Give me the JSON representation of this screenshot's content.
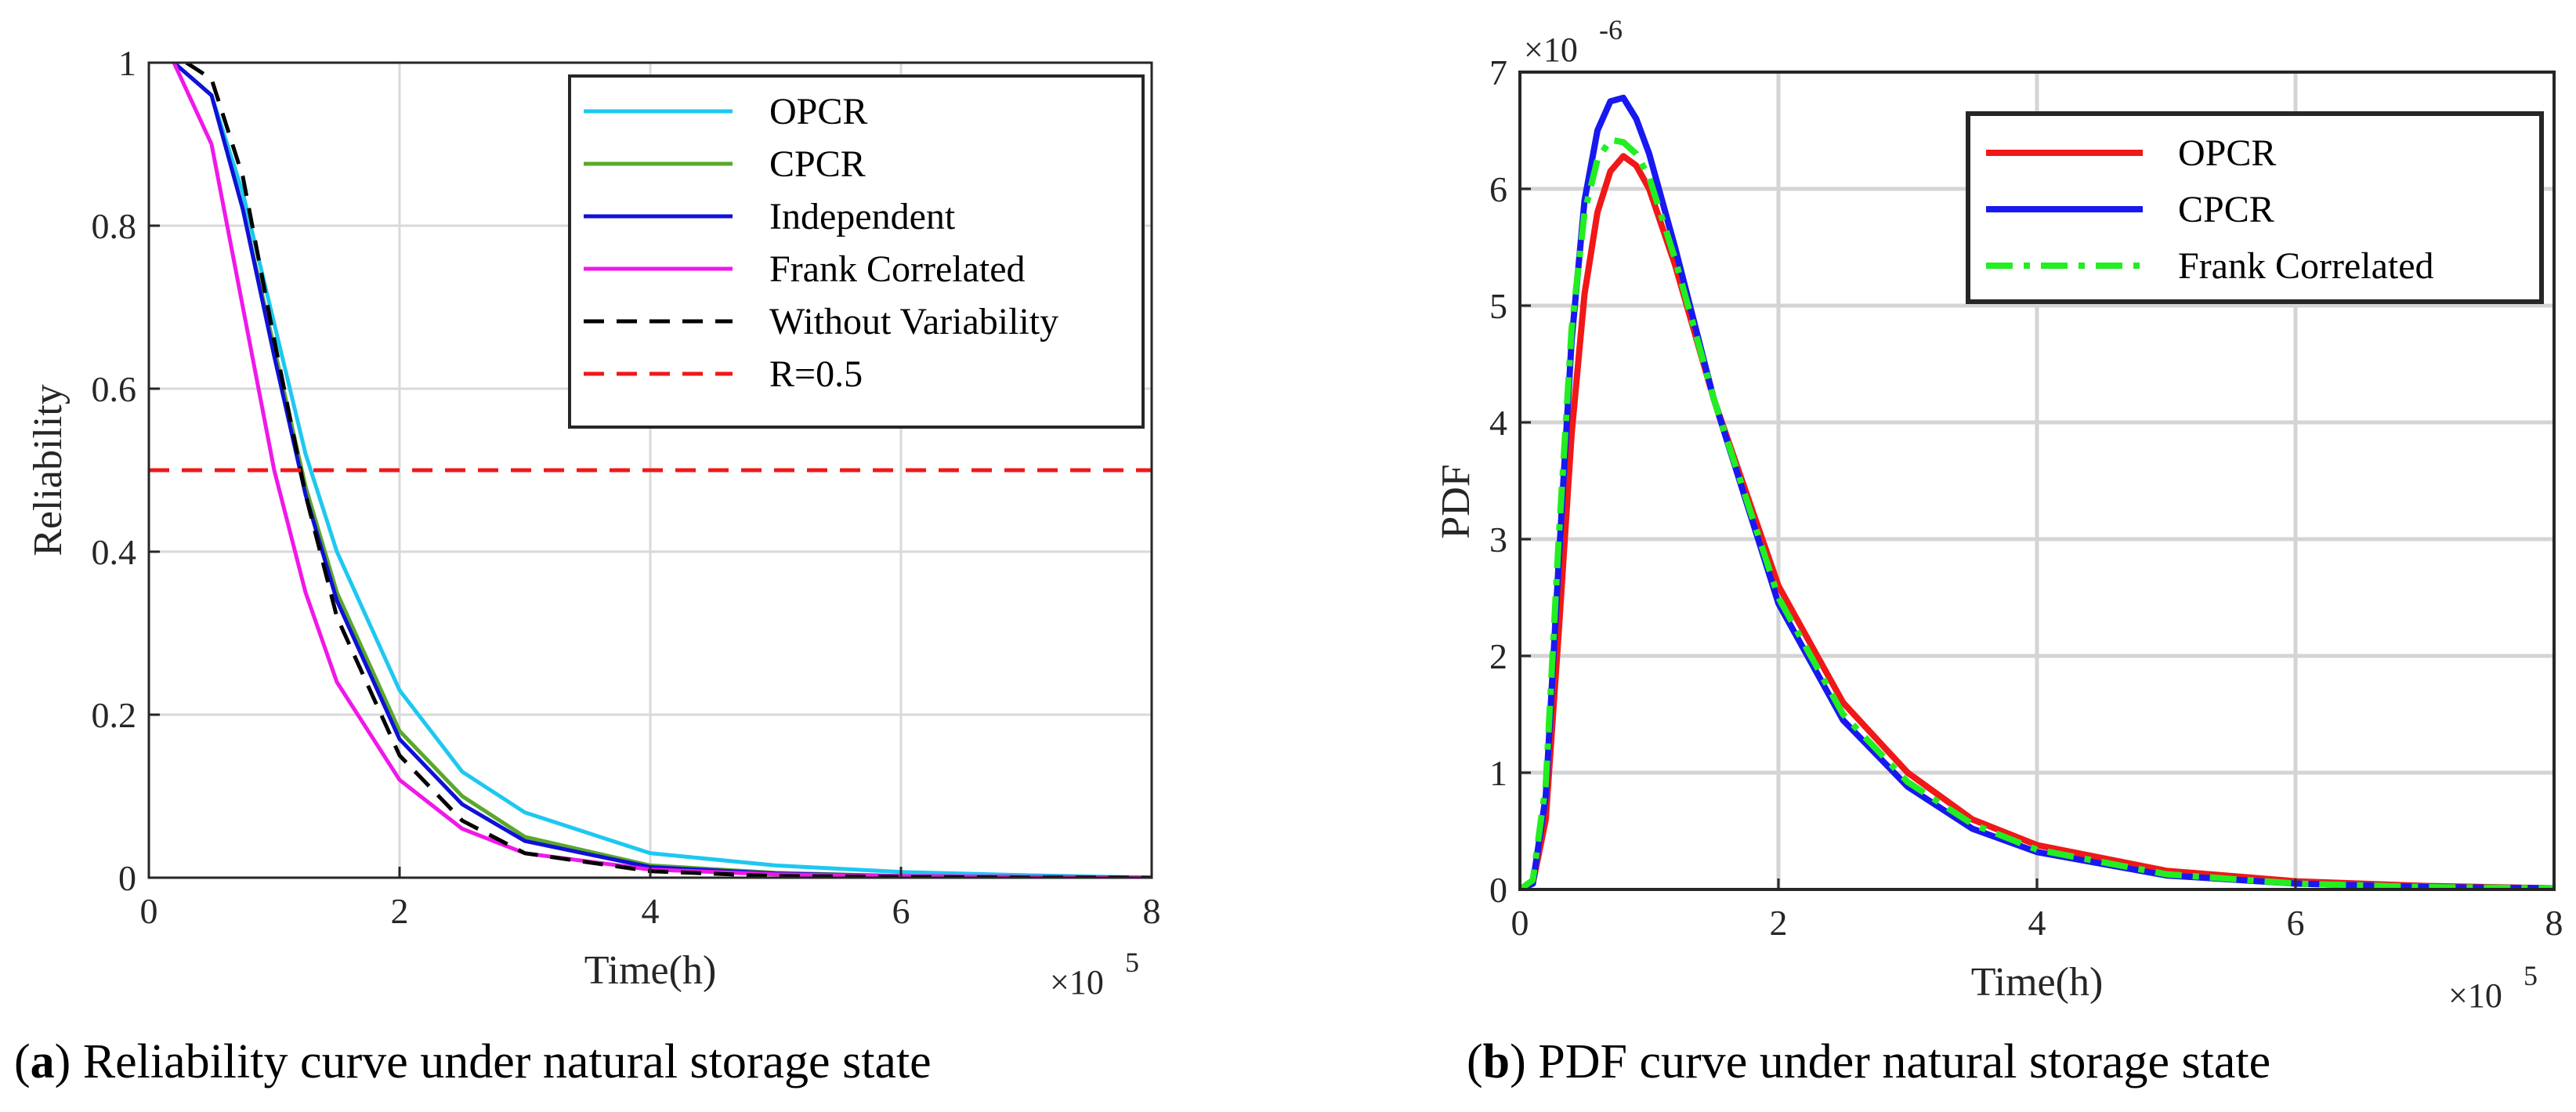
{
  "chart_data": [
    {
      "type": "line",
      "id": "a",
      "caption_label": "a",
      "caption_text": "Reliability curve under natural storage state",
      "xlabel": "Time(h)",
      "ylabel": "Reliability",
      "xlim": [
        0,
        8
      ],
      "ylim": [
        0,
        1
      ],
      "x_multiplier": "×10",
      "x_multiplier_exp": "5",
      "xticks": [
        0,
        2,
        4,
        6,
        8
      ],
      "xtick_labels": [
        "0",
        "2",
        "4",
        "6",
        "8"
      ],
      "yticks": [
        0,
        0.2,
        0.4,
        0.6,
        0.8,
        1
      ],
      "ytick_labels": [
        "0",
        "0.2",
        "0.4",
        "0.6",
        "0.8",
        "1"
      ],
      "grid": true,
      "legend_position": "top-right",
      "series": [
        {
          "name": "OPCR",
          "color": "#1ec8f0",
          "dash": "solid",
          "x": [
            0.2,
            0.5,
            0.75,
            1.0,
            1.25,
            1.5,
            2.0,
            2.5,
            3.0,
            4.0,
            5.0,
            6.0,
            7.0,
            8.0
          ],
          "y": [
            1.0,
            0.96,
            0.84,
            0.68,
            0.52,
            0.4,
            0.23,
            0.13,
            0.08,
            0.03,
            0.015,
            0.007,
            0.003,
            0.0
          ]
        },
        {
          "name": "CPCR",
          "color": "#5aa82a",
          "dash": "solid",
          "x": [
            0.2,
            0.5,
            0.75,
            1.0,
            1.25,
            1.5,
            2.0,
            2.5,
            3.0,
            4.0,
            5.0,
            6.0,
            7.0,
            8.0
          ],
          "y": [
            1.0,
            0.96,
            0.82,
            0.65,
            0.48,
            0.35,
            0.18,
            0.1,
            0.05,
            0.015,
            0.006,
            0.002,
            0.001,
            0.0
          ]
        },
        {
          "name": "Independent",
          "color": "#1010d8",
          "dash": "solid",
          "x": [
            0.2,
            0.5,
            0.75,
            1.0,
            1.25,
            1.5,
            2.0,
            2.5,
            3.0,
            4.0,
            5.0,
            6.0,
            7.0,
            8.0
          ],
          "y": [
            1.0,
            0.96,
            0.82,
            0.64,
            0.47,
            0.34,
            0.17,
            0.09,
            0.045,
            0.013,
            0.005,
            0.002,
            0.001,
            0.0
          ]
        },
        {
          "name": "Frank Correlated",
          "color": "#f018e8",
          "dash": "solid",
          "x": [
            0.2,
            0.5,
            0.75,
            1.0,
            1.25,
            1.5,
            2.0,
            2.5,
            3.0,
            4.0,
            5.0,
            6.0,
            7.0,
            8.0
          ],
          "y": [
            1.0,
            0.9,
            0.7,
            0.5,
            0.35,
            0.24,
            0.12,
            0.06,
            0.03,
            0.01,
            0.004,
            0.002,
            0.001,
            0.0
          ]
        },
        {
          "name": "Without Variability",
          "color": "#000000",
          "dash": "dashed",
          "x": [
            0.3,
            0.5,
            0.75,
            1.0,
            1.25,
            1.5,
            2.0,
            2.5,
            3.0,
            4.0,
            5.0,
            6.0,
            7.0,
            8.0
          ],
          "y": [
            1.0,
            0.98,
            0.86,
            0.66,
            0.47,
            0.32,
            0.15,
            0.07,
            0.03,
            0.008,
            0.002,
            0.001,
            0.0,
            0.0
          ]
        },
        {
          "name": "R=0.5",
          "color": "#f01818",
          "dash": "dashed",
          "x": [
            0,
            8
          ],
          "y": [
            0.5,
            0.5
          ]
        }
      ]
    },
    {
      "type": "line",
      "id": "b",
      "caption_label": "b",
      "caption_text": "PDF curve under natural storage state",
      "xlabel": "Time(h)",
      "ylabel": "PDF",
      "xlim": [
        0,
        8
      ],
      "ylim": [
        0,
        7
      ],
      "x_multiplier": "×10",
      "x_multiplier_exp": "5",
      "y_multiplier": "×10",
      "y_multiplier_exp": "-6",
      "xticks": [
        0,
        2,
        4,
        6,
        8
      ],
      "xtick_labels": [
        "0",
        "2",
        "4",
        "6",
        "8"
      ],
      "yticks": [
        0,
        1,
        2,
        3,
        4,
        5,
        6,
        7
      ],
      "ytick_labels": [
        "0",
        "1",
        "2",
        "3",
        "4",
        "5",
        "6",
        "7"
      ],
      "grid": true,
      "legend_position": "top-right",
      "series": [
        {
          "name": "OPCR",
          "color": "#f01818",
          "dash": "solid",
          "x": [
            0,
            0.1,
            0.2,
            0.3,
            0.4,
            0.5,
            0.6,
            0.7,
            0.8,
            0.9,
            1.0,
            1.2,
            1.5,
            2.0,
            2.5,
            3.0,
            3.5,
            4.0,
            5.0,
            6.0,
            7.0,
            8.0
          ],
          "y": [
            0,
            0.05,
            0.6,
            2.2,
            3.9,
            5.1,
            5.8,
            6.15,
            6.28,
            6.2,
            6.0,
            5.35,
            4.2,
            2.6,
            1.6,
            1.0,
            0.6,
            0.38,
            0.16,
            0.07,
            0.03,
            0.01
          ]
        },
        {
          "name": "CPCR",
          "color": "#1818f0",
          "dash": "solid",
          "x": [
            0,
            0.1,
            0.2,
            0.3,
            0.4,
            0.5,
            0.6,
            0.7,
            0.8,
            0.9,
            1.0,
            1.2,
            1.5,
            2.0,
            2.5,
            3.0,
            3.5,
            4.0,
            5.0,
            6.0,
            7.0,
            8.0
          ],
          "y": [
            0,
            0.05,
            0.8,
            2.8,
            4.7,
            5.9,
            6.5,
            6.75,
            6.78,
            6.6,
            6.3,
            5.5,
            4.2,
            2.45,
            1.45,
            0.88,
            0.52,
            0.32,
            0.12,
            0.05,
            0.02,
            0.01
          ]
        },
        {
          "name": "Frank Correlated",
          "color": "#22ee22",
          "dash": "dashdot",
          "x": [
            0,
            0.1,
            0.2,
            0.3,
            0.4,
            0.5,
            0.6,
            0.7,
            0.8,
            0.9,
            1.0,
            1.2,
            1.5,
            2.0,
            2.5,
            3.0,
            3.5,
            4.0,
            5.0,
            6.0,
            7.0,
            8.0
          ],
          "y": [
            0,
            0.08,
            0.9,
            3.0,
            4.8,
            5.8,
            6.25,
            6.42,
            6.4,
            6.3,
            6.1,
            5.4,
            4.2,
            2.5,
            1.5,
            0.92,
            0.56,
            0.34,
            0.13,
            0.05,
            0.02,
            0.01
          ]
        }
      ]
    }
  ]
}
